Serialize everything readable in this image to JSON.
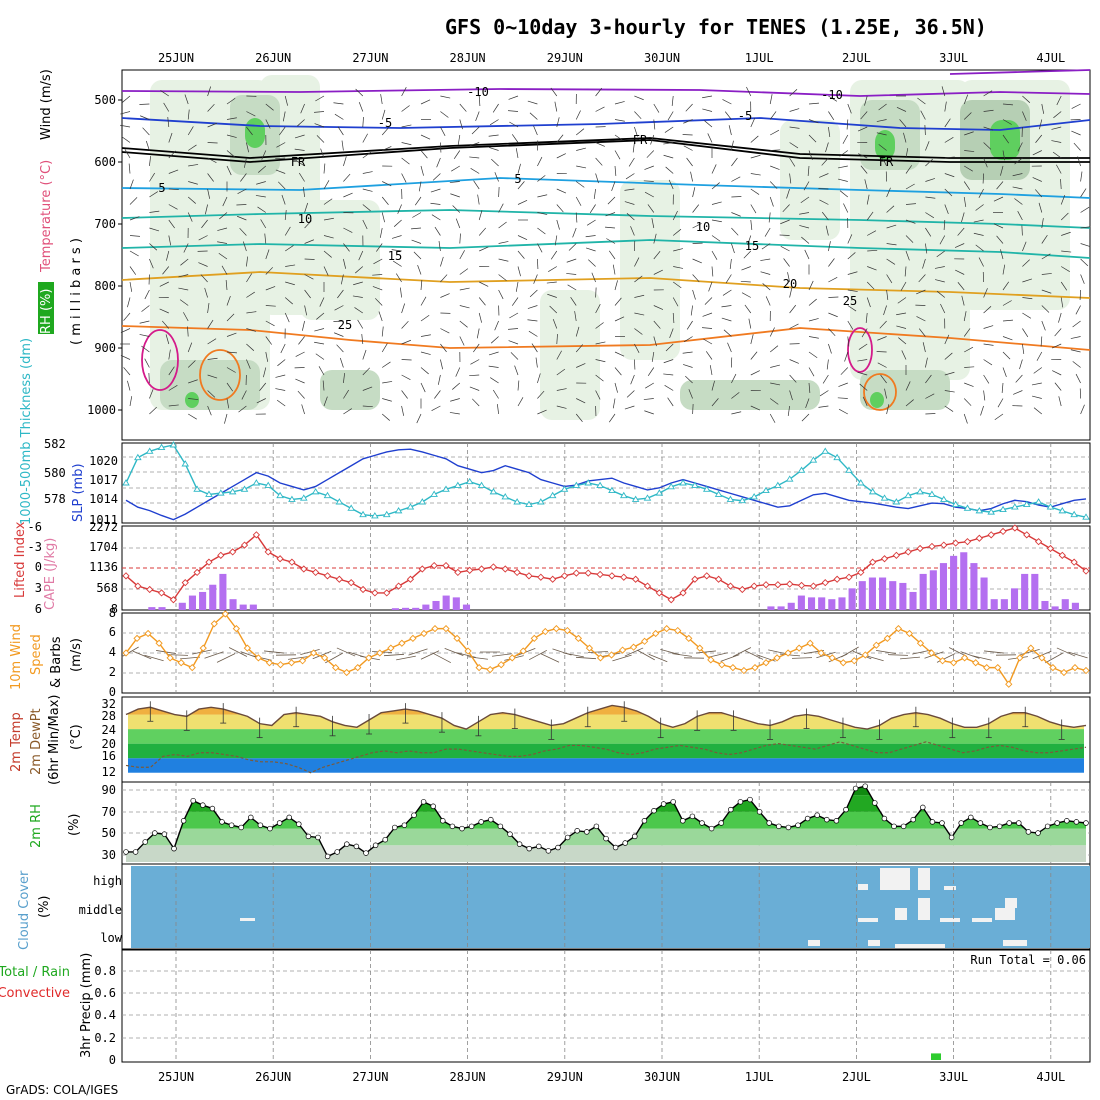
{
  "title": "GFS 0~10day 3-hourly for TENES (1.25E, 36.5N)",
  "footer": "GrADS: COLA/IGES",
  "dates": [
    "25JUN",
    "26JUN",
    "27JUN",
    "28JUN",
    "29JUN",
    "30JUN",
    "1JUL",
    "2JUL",
    "3JUL",
    "4JUL"
  ],
  "colors": {
    "slp": "#1f3fcf",
    "thickness": "#2fb8c6",
    "lifted_index": "#d83a3a",
    "cape": "#b46ff0",
    "wind_speed": "#f29a21",
    "temp": "#6a4a3a",
    "rh": "#22b422",
    "cloud_bg": "#6aaed6",
    "precip": "#2ecc2e"
  },
  "panels": {
    "upper": {
      "ylabel_parts": [
        {
          "text": "Wind (m/s)",
          "color": "#000000"
        },
        {
          "text": "Temperature (°C)",
          "color": "#e0507a"
        },
        {
          "text": "RH (%)",
          "color": "#1a8f1a"
        }
      ],
      "ylabel2": "( m i l l i b a r s )",
      "yticks": [
        "500",
        "600",
        "700",
        "800",
        "900",
        "1000"
      ],
      "contour_labels": [
        "-10",
        "-10",
        "-5",
        "-5",
        "FR",
        "FR",
        "FR",
        "5",
        "5",
        "10",
        "10",
        "15",
        "15",
        "20",
        "25",
        "25"
      ]
    },
    "pressure": {
      "ylabel_left": "1000-500mb Thickness (dm)",
      "ylabel_right": "SLP (mb)",
      "left_ticks": [
        "582",
        "580",
        "578"
      ],
      "right_ticks": [
        "1020",
        "1017",
        "1014",
        "1011"
      ]
    },
    "cape": {
      "ylabel_left": "Lifted Index",
      "ylabel_right": "CAPE (J/kg)",
      "left_ticks": [
        "-6",
        "-3",
        "0",
        "3",
        "6"
      ],
      "right_ticks": [
        "2272",
        "1704",
        "1136",
        "568",
        "8"
      ]
    },
    "wind": {
      "ylabel1": "10m Wind",
      "ylabel2": "Speed",
      "ylabel3": "& Barbs",
      "ylabel4": "(m/s)",
      "yticks": [
        "8",
        "6",
        "4",
        "2",
        "0"
      ]
    },
    "temp": {
      "ylabel1": "2m Temp",
      "ylabel2": "2m DewPt",
      "ylabel3": "(6hr Min/Max)",
      "ylabel4": "(°C)",
      "yticks": [
        "32",
        "28",
        "24",
        "20",
        "16",
        "12"
      ]
    },
    "rh": {
      "ylabel": "2m RH",
      "unit": "(%)",
      "yticks": [
        "90",
        "70",
        "50",
        "30"
      ]
    },
    "cloud": {
      "ylabel": "Cloud Cover",
      "unit": "(%)",
      "levels": [
        "high",
        "middle",
        "low"
      ]
    },
    "precip": {
      "ylabel1": "3hr Precip (mm)",
      "ylabel_total": "Total / Rain",
      "ylabel_conv": "Convective",
      "run_total": "Run Total = 0.06",
      "yticks": [
        "0.8",
        "0.6",
        "0.4",
        "0.2",
        "0"
      ]
    }
  },
  "chart_data": [
    {
      "type": "line",
      "name": "slp",
      "ylabel": "SLP (mb)",
      "ylim": [
        1011,
        1022
      ],
      "values": [
        1014,
        1013,
        1012.5,
        1011.8,
        1011.2,
        1012,
        1013,
        1014,
        1015,
        1016,
        1017,
        1018,
        1017.5,
        1016.5,
        1016,
        1015.5,
        1016,
        1017,
        1018,
        1019,
        1020,
        1020.5,
        1021,
        1021.3,
        1021.4,
        1021,
        1020.5,
        1020,
        1019,
        1018.5,
        1018,
        1018.3,
        1019,
        1018.5,
        1018,
        1017,
        1016.5,
        1016,
        1016.2,
        1016.8,
        1017,
        1017.2,
        1016.5,
        1016,
        1015.5,
        1015.8,
        1016.5,
        1017,
        1016.5,
        1016,
        1015.5,
        1015,
        1014.5,
        1014,
        1013.5,
        1013,
        1013.2,
        1014,
        1014.8,
        1015,
        1014.5,
        1014,
        1013.8,
        1013.6,
        1013.3,
        1013,
        1012.8,
        1013.2,
        1013.6,
        1013.5,
        1013,
        1012.8,
        1012.5,
        1012.8,
        1013.5,
        1014,
        1013.8,
        1013.3,
        1013,
        1013.5,
        1014,
        1014.2
      ]
    },
    {
      "type": "line",
      "name": "thickness",
      "ylabel": "1000-500mb Thickness (dm)",
      "ylim": [
        576.5,
        582.5
      ],
      "values": [
        579.5,
        581.5,
        582,
        582.3,
        582.5,
        581,
        579,
        578.6,
        578.7,
        578.8,
        579,
        579.5,
        579.3,
        578.5,
        578.2,
        578.3,
        578.8,
        578.5,
        578,
        577.5,
        577,
        576.9,
        577,
        577.3,
        577.6,
        578,
        578.6,
        579,
        579.3,
        579.6,
        579.3,
        578.8,
        578.4,
        578,
        577.8,
        578,
        578.5,
        579,
        579.3,
        579.5,
        579.3,
        578.9,
        578.5,
        578.2,
        578.3,
        578.7,
        579.2,
        579.5,
        579.3,
        579,
        578.6,
        578.2,
        578.1,
        578.4,
        578.9,
        579.3,
        579.8,
        580.5,
        581.3,
        582,
        581.5,
        580.5,
        579.5,
        578.8,
        578.3,
        578,
        578.5,
        578.8,
        578.6,
        578.2,
        577.8,
        577.5,
        577.3,
        577.2,
        577.4,
        577.6,
        577.8,
        578,
        577.6,
        577.3,
        577,
        576.8
      ]
    },
    {
      "type": "line",
      "name": "lifted_index",
      "ylabel": "Lifted Index",
      "ylim": [
        -6,
        6
      ],
      "values": [
        1,
        2.5,
        3,
        3.5,
        4.5,
        2,
        0.5,
        -1,
        -2,
        -2.5,
        -3.5,
        -5,
        -2.5,
        -1.5,
        -1,
        0,
        0.5,
        1,
        1.5,
        2,
        3,
        3.5,
        3.5,
        2.5,
        1.5,
        0,
        -0.5,
        -0.5,
        0.5,
        0.2,
        0,
        -0.3,
        0,
        0.5,
        1,
        1.2,
        1.5,
        1,
        0.6,
        0.6,
        0.8,
        1,
        1.2,
        1.5,
        2.5,
        3.5,
        4.5,
        3.5,
        1.5,
        1,
        1.5,
        2.5,
        3,
        2.5,
        2.3,
        2.3,
        2.2,
        2.4,
        2.5,
        2,
        1.5,
        1.2,
        0.5,
        -1,
        -1.5,
        -2,
        -2.5,
        -3,
        -3.3,
        -3.5,
        -3.8,
        -4,
        -4.5,
        -5,
        -5.5,
        -6,
        -5,
        -4,
        -3,
        -2,
        -1,
        0.3
      ]
    },
    {
      "type": "bar",
      "name": "cape",
      "ylabel": "CAPE (J/kg)",
      "ylim": [
        0,
        2272
      ],
      "values": [
        0,
        0,
        80,
        80,
        0,
        200,
        400,
        500,
        700,
        1000,
        300,
        150,
        150,
        0,
        0,
        0,
        0,
        0,
        0,
        0,
        0,
        0,
        0,
        0,
        0,
        0,
        50,
        60,
        60,
        150,
        250,
        400,
        350,
        150,
        0,
        0,
        0,
        0,
        0,
        0,
        0,
        0,
        0,
        0,
        0,
        0,
        0,
        0,
        0,
        0,
        0,
        0,
        0,
        0,
        0,
        0,
        0,
        0,
        0,
        0,
        0,
        0,
        0,
        100,
        100,
        200,
        400,
        350,
        350,
        300,
        350,
        600,
        800,
        900,
        900,
        800,
        750,
        500,
        1000,
        1100,
        1300,
        1500,
        1600,
        1300,
        900,
        300,
        300,
        600,
        1000,
        1000,
        250,
        100,
        300,
        200
      ]
    },
    {
      "type": "line",
      "name": "wind_speed",
      "ylabel": "Speed (m/s)",
      "ylim": [
        0,
        8
      ],
      "values": [
        4,
        5.5,
        6,
        5,
        3.5,
        3,
        2.5,
        4.5,
        7,
        8,
        6.5,
        4.5,
        3.5,
        3,
        2.8,
        3,
        3.2,
        4,
        3.5,
        2.5,
        2,
        2.5,
        3.5,
        4,
        4.5,
        5,
        5.5,
        6,
        6.5,
        6.5,
        5.5,
        4.2,
        2.5,
        2.3,
        2.8,
        3.5,
        4.2,
        5.5,
        6.2,
        6.5,
        6.3,
        5.5,
        4.5,
        3.5,
        3.8,
        4.3,
        4.6,
        5.2,
        6,
        6.5,
        6.3,
        5.5,
        4.5,
        3.3,
        2.8,
        2.5,
        2.2,
        2.5,
        3,
        3.5,
        4,
        4.5,
        5,
        4,
        3.5,
        3,
        3.2,
        3.8,
        4.8,
        5.5,
        6.5,
        6,
        5,
        4,
        3.2,
        3,
        3.5,
        3,
        2.5,
        2.5,
        0.8,
        3.5,
        4.5,
        3.5,
        2.5,
        2,
        2.5,
        2.2
      ]
    },
    {
      "type": "area",
      "name": "temp",
      "ylabel": "2m Temp (°C)",
      "ylim": [
        10,
        32
      ],
      "values": [
        28,
        29.5,
        30,
        29,
        28,
        27.5,
        29.5,
        30,
        29.5,
        28.5,
        27.5,
        25.5,
        25,
        28,
        28.5,
        28,
        27.5,
        26,
        25,
        24.5,
        26.5,
        28.5,
        29,
        29.5,
        29,
        28,
        27,
        25,
        24,
        26,
        28,
        28.5,
        28,
        27,
        26,
        25,
        25.5,
        27,
        28.5,
        29.5,
        30.5,
        30,
        29,
        27.5,
        25.5,
        24.5,
        25.5,
        27.5,
        28.5,
        28.5,
        27.5,
        26.5,
        25.5,
        25,
        26,
        27.5,
        28,
        27.5,
        26.5,
        25.5,
        24.5,
        24,
        25,
        27,
        28,
        28.5,
        28,
        27,
        25.5,
        24.5,
        24.5,
        25.5,
        27.5,
        28.5,
        28.5,
        27.5,
        26,
        25,
        24.5,
        25
      ]
    },
    {
      "type": "line",
      "name": "dewpt",
      "ylabel": "2m DewPt (°C)",
      "ylim": [
        10,
        32
      ],
      "values": [
        14,
        13.5,
        13.5,
        16.5,
        17,
        16.5,
        17.5,
        17.5,
        17,
        16.5,
        15.5,
        15,
        15,
        14.5,
        13.5,
        12,
        13.5,
        14.5,
        15.5,
        16.5,
        17.5,
        18,
        17.5,
        18,
        17.5,
        17.5,
        18.5,
        18.5,
        18,
        17.5,
        17,
        16.5,
        16.5,
        17,
        18,
        18.5,
        19.5,
        19.5,
        19,
        18.5,
        17.5,
        17,
        17.5,
        18.5,
        19,
        19.5,
        19,
        18.5,
        17.5,
        17,
        17.5,
        18.5,
        19.5,
        20,
        19.5,
        19,
        18.5,
        19.5,
        20.5,
        19.5,
        18.5,
        17.5,
        17.5,
        18.5,
        19.5,
        20.5,
        19.5,
        18.5,
        17.5,
        18,
        19,
        19.5,
        19,
        18,
        17.5,
        17.5,
        18,
        18.5,
        19
      ]
    },
    {
      "type": "area",
      "name": "rh",
      "ylabel": "2m RH (%)",
      "ylim": [
        25,
        95
      ],
      "values": [
        34,
        34,
        43,
        51,
        50,
        37,
        62,
        80,
        76,
        73,
        61,
        58,
        56,
        65,
        58,
        55,
        60,
        65,
        59,
        48,
        47,
        30,
        34,
        41,
        39,
        33,
        40,
        45,
        56,
        58,
        67,
        79,
        75,
        62,
        57,
        55,
        57,
        61,
        63,
        57,
        50,
        41,
        37,
        39,
        35,
        38,
        47,
        53,
        52,
        57,
        46,
        38,
        42,
        48,
        62,
        71,
        77,
        79,
        62,
        66,
        60,
        55,
        60,
        72,
        79,
        81,
        70,
        60,
        57,
        56,
        58,
        64,
        67,
        63,
        62,
        72,
        91,
        93,
        78,
        64,
        57,
        57,
        63,
        74,
        61,
        60,
        47,
        60,
        65,
        60,
        56,
        57,
        60,
        60,
        52,
        51,
        57,
        60,
        62,
        61,
        60
      ]
    },
    {
      "type": "bar",
      "name": "precip",
      "ylabel": "3hr Precip (mm)",
      "ylim": [
        0,
        1
      ],
      "values": [
        0.06
      ]
    }
  ]
}
